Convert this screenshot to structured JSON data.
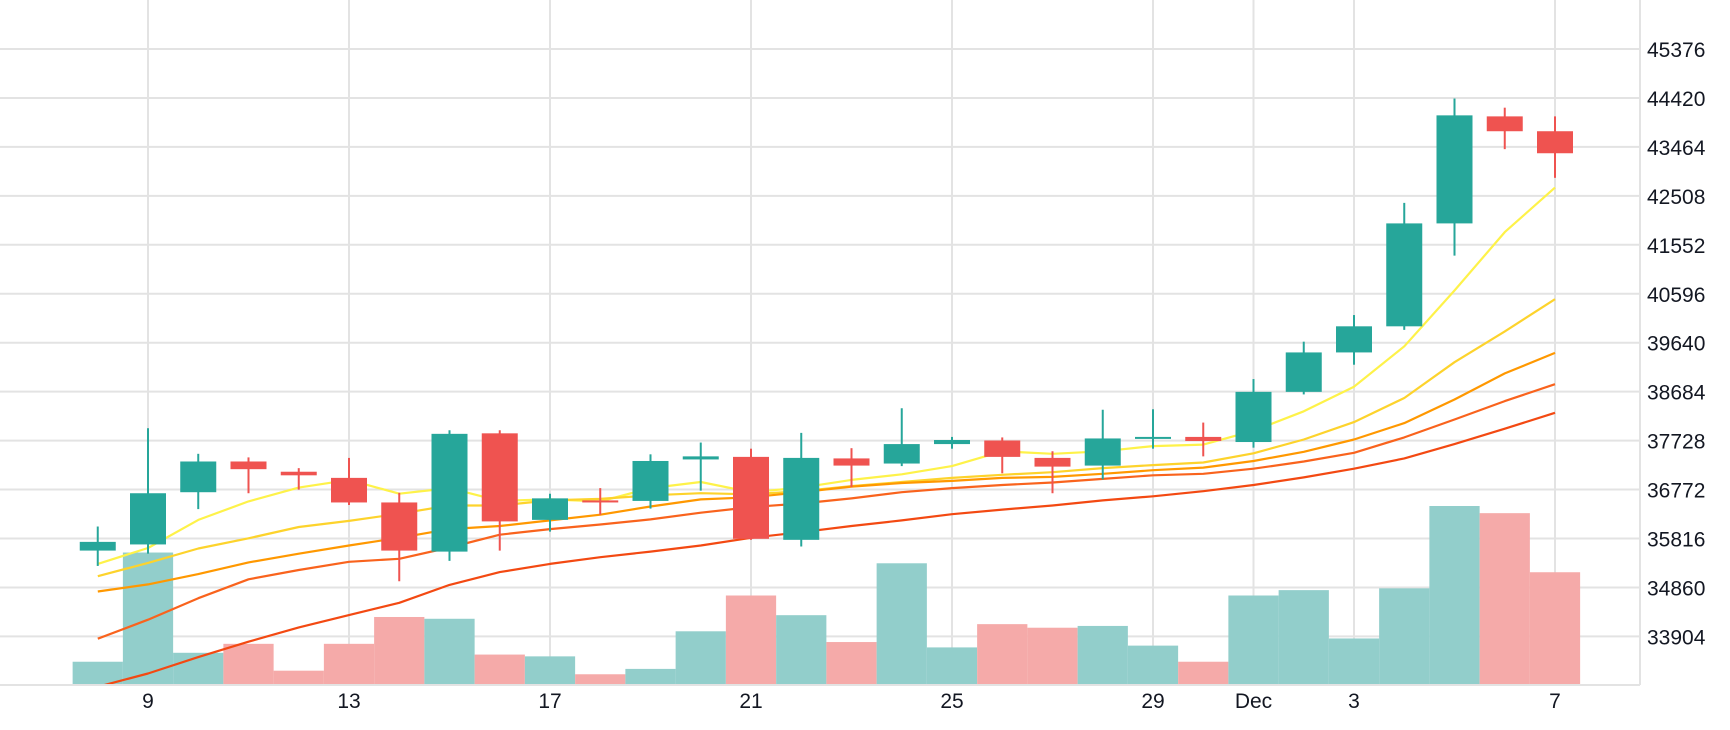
{
  "chart_data": {
    "type": "candlestick",
    "title": "",
    "xlabel": "",
    "ylabel": "",
    "x_tick_labels": [
      {
        "day": 9,
        "label": "9"
      },
      {
        "day": 13,
        "label": "13"
      },
      {
        "day": 17,
        "label": "17"
      },
      {
        "day": 21,
        "label": "21"
      },
      {
        "day": 25,
        "label": "25"
      },
      {
        "day": 29,
        "label": "29"
      },
      {
        "day": 31,
        "label": "Dec"
      },
      {
        "day": 33,
        "label": "3"
      },
      {
        "day": 37,
        "label": "7"
      }
    ],
    "y_ticks": [
      33904,
      34860,
      35816,
      36772,
      37728,
      38684,
      39640,
      40596,
      41552,
      42508,
      43464,
      44420,
      45376
    ],
    "ylim": [
      32960,
      46330
    ],
    "grid": true,
    "colors": {
      "up": "#26a69a",
      "down": "#ef5350",
      "volume_up": "#92cecb",
      "volume_down": "#f5aaa9",
      "grid": "#e3e3e3"
    },
    "candles": [
      {
        "day": 8,
        "open": 35580,
        "high": 36050,
        "low": 35280,
        "close": 35750,
        "volume": 0.13
      },
      {
        "day": 9,
        "open": 35700,
        "high": 37970,
        "low": 35520,
        "close": 36700,
        "volume": 0.74
      },
      {
        "day": 10,
        "open": 36720,
        "high": 37470,
        "low": 36390,
        "close": 37320,
        "volume": 0.18
      },
      {
        "day": 11,
        "open": 37320,
        "high": 37400,
        "low": 36700,
        "close": 37170,
        "volume": 0.23
      },
      {
        "day": 12,
        "open": 37120,
        "high": 37190,
        "low": 36770,
        "close": 37050,
        "volume": 0.08
      },
      {
        "day": 13,
        "open": 37000,
        "high": 37390,
        "low": 36470,
        "close": 36520,
        "volume": 0.23
      },
      {
        "day": 14,
        "open": 36520,
        "high": 36710,
        "low": 34980,
        "close": 35580,
        "volume": 0.38
      },
      {
        "day": 15,
        "open": 35560,
        "high": 37930,
        "low": 35380,
        "close": 37860,
        "volume": 0.37
      },
      {
        "day": 16,
        "open": 37870,
        "high": 37930,
        "low": 35580,
        "close": 36150,
        "volume": 0.17
      },
      {
        "day": 17,
        "open": 36180,
        "high": 36690,
        "low": 35950,
        "close": 36600,
        "volume": 0.16
      },
      {
        "day": 18,
        "open": 36560,
        "high": 36800,
        "low": 36280,
        "close": 36520,
        "volume": 0.06
      },
      {
        "day": 19,
        "open": 36550,
        "high": 37460,
        "low": 36400,
        "close": 37330,
        "volume": 0.09
      },
      {
        "day": 20,
        "open": 37360,
        "high": 37690,
        "low": 36750,
        "close": 37420,
        "volume": 0.3
      },
      {
        "day": 21,
        "open": 37410,
        "high": 37570,
        "low": 35790,
        "close": 35810,
        "volume": 0.5
      },
      {
        "day": 22,
        "open": 35790,
        "high": 37880,
        "low": 35660,
        "close": 37390,
        "volume": 0.39
      },
      {
        "day": 23,
        "open": 37380,
        "high": 37580,
        "low": 36820,
        "close": 37240,
        "volume": 0.24
      },
      {
        "day": 24,
        "open": 37280,
        "high": 38360,
        "low": 37230,
        "close": 37660,
        "volume": 0.68
      },
      {
        "day": 25,
        "open": 37660,
        "high": 37800,
        "low": 37570,
        "close": 37740,
        "volume": 0.21
      },
      {
        "day": 26,
        "open": 37730,
        "high": 37790,
        "low": 37090,
        "close": 37410,
        "volume": 0.34
      },
      {
        "day": 27,
        "open": 37390,
        "high": 37520,
        "low": 36700,
        "close": 37220,
        "volume": 0.32
      },
      {
        "day": 28,
        "open": 37240,
        "high": 38330,
        "low": 36970,
        "close": 37770,
        "volume": 0.33
      },
      {
        "day": 29,
        "open": 37770,
        "high": 38340,
        "low": 37570,
        "close": 37800,
        "volume": 0.22
      },
      {
        "day": 30,
        "open": 37800,
        "high": 38080,
        "low": 37420,
        "close": 37720,
        "volume": 0.13
      },
      {
        "day": 31,
        "open": 37700,
        "high": 38930,
        "low": 37590,
        "close": 38680,
        "volume": 0.5
      },
      {
        "day": 32,
        "open": 38680,
        "high": 39660,
        "low": 38630,
        "close": 39450,
        "volume": 0.53
      },
      {
        "day": 33,
        "open": 39450,
        "high": 40180,
        "low": 39210,
        "close": 39960,
        "volume": 0.26
      },
      {
        "day": 34,
        "open": 39960,
        "high": 42370,
        "low": 39890,
        "close": 41970,
        "volume": 0.54
      },
      {
        "day": 35,
        "open": 41970,
        "high": 44410,
        "low": 41340,
        "close": 44080,
        "volume": 1.0
      },
      {
        "day": 36,
        "open": 44060,
        "high": 44230,
        "low": 43420,
        "close": 43770,
        "volume": 0.96
      },
      {
        "day": 37,
        "open": 43770,
        "high": 44060,
        "low": 42860,
        "close": 43340,
        "volume": 0.63
      }
    ],
    "series": [
      {
        "color": "#fef249",
        "x": [
          8,
          9,
          10,
          11,
          12,
          13,
          14,
          15,
          16,
          17,
          18,
          19,
          20,
          21,
          22,
          23,
          24,
          25,
          26,
          27,
          28,
          29,
          30,
          31,
          32,
          33,
          34,
          35,
          36,
          37
        ],
        "values": [
          35320,
          35630,
          36180,
          36540,
          36810,
          36960,
          36690,
          36800,
          36550,
          36580,
          36540,
          36800,
          36920,
          36720,
          36810,
          36960,
          37070,
          37230,
          37520,
          37470,
          37520,
          37620,
          37650,
          37920,
          38300,
          38780,
          39570,
          40660,
          41800,
          42670
        ]
      },
      {
        "color": "#fdd32c",
        "x": [
          8,
          9,
          10,
          11,
          12,
          13,
          14,
          15,
          16,
          17,
          18,
          19,
          20,
          21,
          22,
          23,
          24,
          25,
          26,
          27,
          28,
          29,
          30,
          31,
          32,
          33,
          34,
          35,
          36,
          37
        ],
        "values": [
          35080,
          35340,
          35620,
          35820,
          36040,
          36160,
          36300,
          36460,
          36460,
          36560,
          36590,
          36660,
          36700,
          36680,
          36740,
          36840,
          36920,
          37000,
          37060,
          37110,
          37190,
          37250,
          37300,
          37480,
          37750,
          38090,
          38560,
          39260,
          39860,
          40490
        ]
      },
      {
        "color": "#ff9800",
        "x": [
          8,
          9,
          10,
          11,
          12,
          13,
          14,
          15,
          16,
          17,
          18,
          19,
          20,
          21,
          22,
          23,
          24,
          25,
          26,
          27,
          28,
          29,
          30,
          31,
          32,
          33,
          34,
          35,
          36,
          37
        ],
        "values": [
          34780,
          34920,
          35120,
          35350,
          35520,
          35680,
          35830,
          36000,
          36060,
          36170,
          36280,
          36440,
          36580,
          36620,
          36720,
          36830,
          36900,
          36940,
          37000,
          37020,
          37080,
          37150,
          37200,
          37330,
          37510,
          37750,
          38070,
          38530,
          39040,
          39440
        ]
      },
      {
        "color": "#f9631d",
        "x": [
          8,
          9,
          10,
          11,
          12,
          13,
          14,
          15,
          16,
          17,
          18,
          19,
          20,
          21,
          22,
          23,
          24,
          25,
          26,
          27,
          28,
          29,
          30,
          31,
          32,
          33,
          34,
          35,
          36,
          37
        ],
        "values": [
          33860,
          34230,
          34650,
          35020,
          35200,
          35360,
          35420,
          35640,
          35890,
          36000,
          36090,
          36190,
          36320,
          36430,
          36500,
          36600,
          36720,
          36800,
          36860,
          36910,
          36980,
          37050,
          37080,
          37180,
          37320,
          37490,
          37790,
          38140,
          38500,
          38830
        ]
      },
      {
        "color": "#f34912",
        "x": [
          8,
          9,
          10,
          11,
          12,
          13,
          14,
          15,
          16,
          17,
          18,
          19,
          20,
          21,
          22,
          23,
          24,
          25,
          26,
          27,
          28,
          29,
          30,
          31,
          32,
          33,
          34,
          35,
          36,
          37
        ],
        "values": [
          32920,
          33180,
          33500,
          33800,
          34080,
          34320,
          34560,
          34910,
          35160,
          35320,
          35450,
          35560,
          35680,
          35830,
          35940,
          36060,
          36170,
          36290,
          36380,
          36460,
          36560,
          36640,
          36740,
          36860,
          37010,
          37180,
          37380,
          37660,
          37960,
          38270
        ]
      }
    ]
  }
}
